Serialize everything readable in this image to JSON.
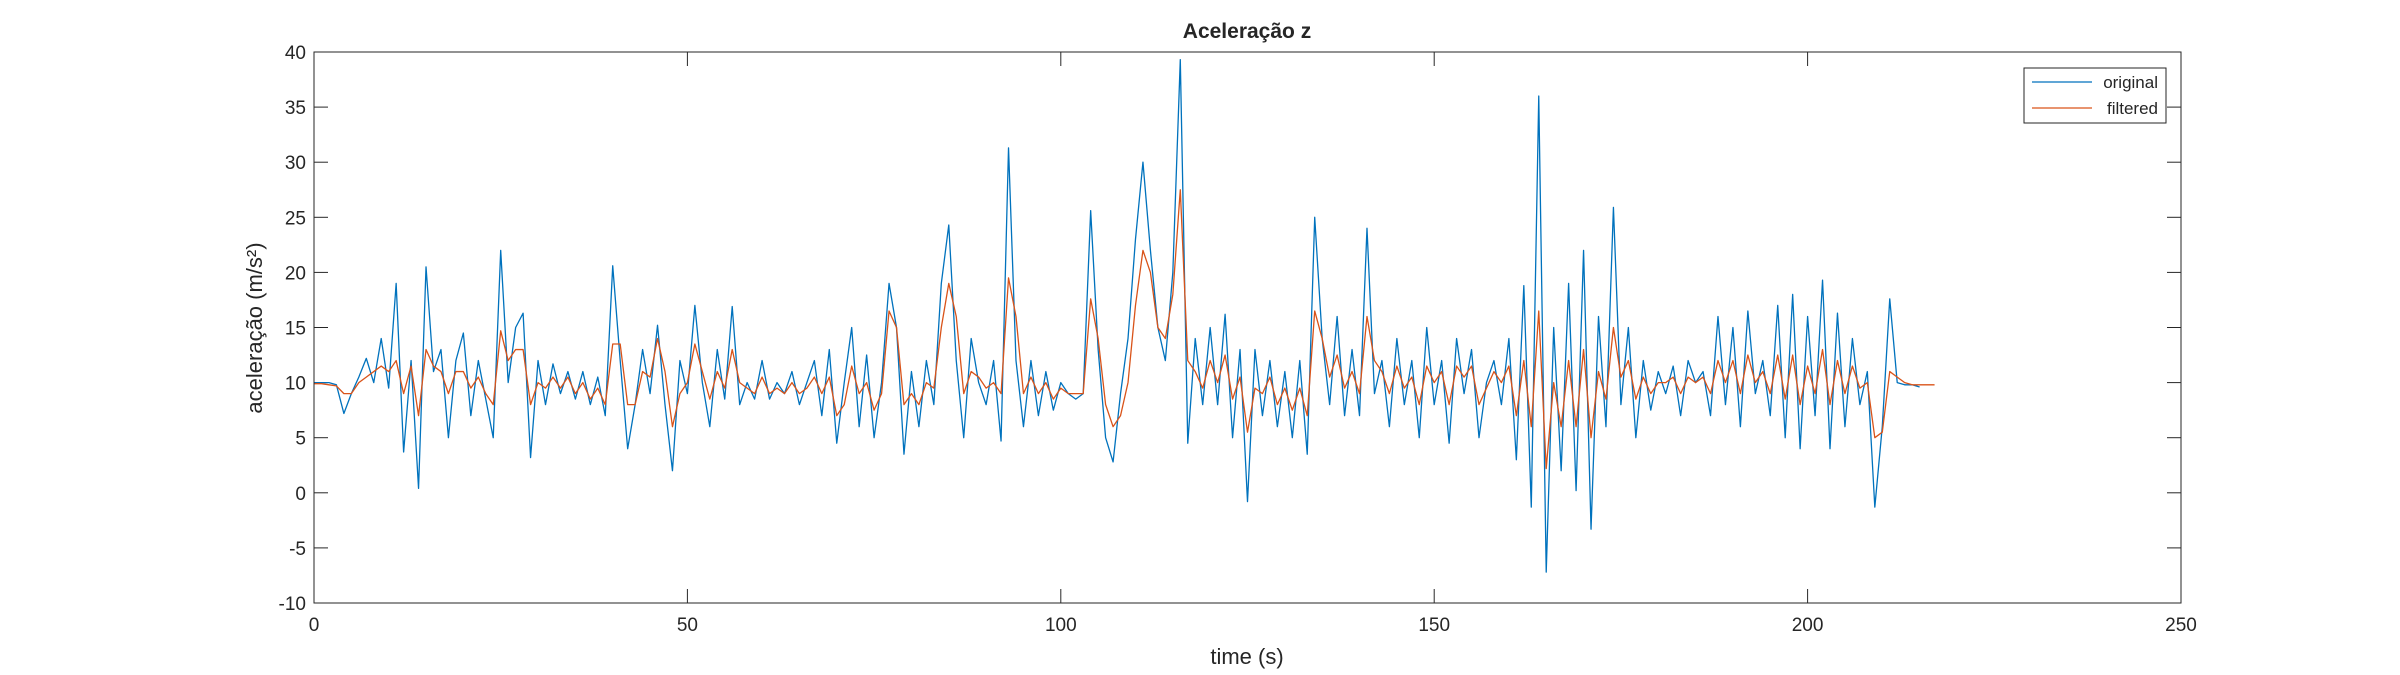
{
  "chart_data": {
    "type": "line",
    "title": "Aceleração z",
    "xlabel": "time (s)",
    "ylabel": "aceleração (m/s²)",
    "xlim": [
      0,
      250
    ],
    "xticks": [
      0,
      50,
      100,
      150,
      200,
      250
    ],
    "ylim": [
      -10,
      40
    ],
    "yticks": [
      -10,
      -5,
      0,
      5,
      10,
      15,
      20,
      25,
      30,
      35,
      40
    ],
    "grid": false,
    "legend": "northeast",
    "x": [
      0,
      1,
      2,
      3,
      4,
      5,
      6,
      7,
      8,
      9,
      10,
      11,
      12,
      13,
      14,
      15,
      16,
      17,
      18,
      19,
      20,
      21,
      22,
      23,
      24,
      25,
      26,
      27,
      28,
      29,
      30,
      31,
      32,
      33,
      34,
      35,
      36,
      37,
      38,
      39,
      40,
      41,
      42,
      43,
      44,
      45,
      46,
      47,
      48,
      49,
      50,
      51,
      52,
      53,
      54,
      55,
      56,
      57,
      58,
      59,
      60,
      61,
      62,
      63,
      64,
      65,
      66,
      67,
      68,
      69,
      70,
      71,
      72,
      73,
      74,
      75,
      76,
      77,
      78,
      79,
      80,
      81,
      82,
      83,
      84,
      85,
      86,
      87,
      88,
      89,
      90,
      91,
      92,
      93,
      94,
      95,
      96,
      97,
      98,
      99,
      100,
      101,
      102,
      103,
      104,
      105,
      106,
      107,
      108,
      109,
      110,
      111,
      112,
      113,
      114,
      115,
      116,
      117,
      118,
      119,
      120,
      121,
      122,
      123,
      124,
      125,
      126,
      127,
      128,
      129,
      130,
      131,
      132,
      133,
      134,
      135,
      136,
      137,
      138,
      139,
      140,
      141,
      142,
      143,
      144,
      145,
      146,
      147,
      148,
      149,
      150,
      151,
      152,
      153,
      154,
      155,
      156,
      157,
      158,
      159,
      160,
      161,
      162,
      163,
      164,
      165,
      166,
      167,
      168,
      169,
      170,
      171,
      172,
      173,
      174,
      175,
      176,
      177,
      178,
      179,
      180,
      181,
      182,
      183,
      184,
      185,
      186,
      187,
      188,
      189,
      190,
      191,
      192,
      193,
      194,
      195,
      196,
      197,
      198,
      199,
      200,
      201,
      202,
      203,
      204,
      205,
      206,
      207,
      208,
      209,
      210,
      211,
      212,
      213,
      214,
      215,
      216,
      217
    ],
    "series": [
      {
        "name": "original",
        "color": "#0072bd",
        "values": [
          10,
          10,
          10,
          9.8,
          7.2,
          9,
          10.5,
          12.2,
          10,
          14,
          9.5,
          19,
          3.7,
          12,
          0.4,
          20.5,
          11,
          13,
          5,
          12,
          14.5,
          7,
          12,
          8.5,
          5,
          22,
          10,
          15,
          16.3,
          3.2,
          12,
          8,
          11.7,
          9,
          11,
          8.5,
          11,
          8,
          10.5,
          7,
          20.6,
          12,
          4,
          8,
          13,
          9,
          15.2,
          8,
          2,
          12,
          9,
          17,
          10,
          6,
          13,
          8.5,
          16.9,
          8,
          10,
          8.5,
          12,
          8.5,
          10,
          9,
          11,
          8,
          10,
          12,
          7,
          13,
          4.5,
          10,
          15,
          6,
          12.5,
          5,
          10,
          19,
          15,
          3.5,
          11,
          6,
          12,
          8,
          19,
          24.3,
          12,
          5,
          14,
          10,
          8,
          12,
          4.7,
          31.3,
          12,
          6,
          12,
          7,
          11,
          7.5,
          10,
          9,
          8.5,
          9,
          25.6,
          13,
          5,
          2.8,
          9,
          14,
          23,
          30,
          22,
          15,
          12,
          20,
          39.3,
          4.5,
          14,
          8,
          15,
          8,
          16.2,
          5,
          13,
          -0.8,
          13,
          7,
          12,
          6,
          11,
          5,
          12,
          3.5,
          25,
          14,
          8,
          16,
          7,
          13,
          7,
          24,
          9,
          12,
          6,
          14,
          8,
          12,
          5,
          15,
          8,
          12,
          4.5,
          14,
          9,
          13,
          5,
          10,
          12,
          8,
          14,
          3,
          18.8,
          -1.3,
          36,
          -7.2,
          15,
          2,
          19,
          0.2,
          22,
          -3.3,
          16,
          6,
          25.9,
          8,
          15,
          5,
          12,
          7.5,
          11,
          9,
          11.5,
          7,
          12,
          10,
          11,
          7,
          16,
          8,
          15,
          6,
          16.5,
          9,
          12,
          7,
          17,
          5,
          18,
          4,
          16,
          7,
          19.3,
          4,
          16.3,
          6,
          14,
          8,
          11,
          -1.3,
          6,
          17.6,
          10,
          9.8,
          9.8,
          9.6,
          null,
          null
        ]
      },
      {
        "name": "filtered",
        "color": "#d95319",
        "values": [
          9.9,
          9.9,
          9.8,
          9.7,
          9,
          9,
          10,
          10.5,
          11,
          11.5,
          11,
          12,
          9,
          11.5,
          7,
          13,
          11.5,
          11,
          9,
          11,
          11,
          9.5,
          10.5,
          9,
          8,
          14.7,
          12,
          13,
          13,
          8,
          10,
          9.5,
          10.5,
          9.5,
          10.5,
          9,
          10,
          8.5,
          9.5,
          8,
          13.5,
          13.5,
          8,
          8,
          11,
          10.5,
          14,
          11,
          6,
          9,
          10,
          13.5,
          11,
          8.5,
          11,
          9.5,
          13,
          10,
          9.5,
          9,
          10.5,
          9,
          9.5,
          9,
          10,
          9,
          9.5,
          10.5,
          9,
          10.5,
          7,
          8,
          11.5,
          9,
          10,
          7.5,
          9,
          16.5,
          15,
          8,
          9,
          8,
          10,
          9.5,
          15,
          19,
          16,
          9,
          11,
          10.5,
          9.5,
          10,
          9,
          19.5,
          16,
          9,
          10.5,
          9,
          10,
          8.5,
          9.5,
          9,
          9,
          9,
          17.6,
          14,
          8,
          6,
          7,
          10,
          17,
          22,
          20,
          15,
          14,
          18,
          27.5,
          12,
          11,
          9.5,
          12,
          10,
          12.5,
          8.5,
          10.5,
          5.5,
          9.5,
          9,
          10.5,
          8,
          9.5,
          7.5,
          9.5,
          7,
          16.5,
          14,
          10.5,
          12.5,
          9.5,
          11,
          9,
          16,
          12,
          11,
          9,
          11.5,
          9.5,
          10.5,
          8,
          11.5,
          10,
          11,
          8,
          11.5,
          10.5,
          11.5,
          8,
          9.5,
          11,
          10,
          11.5,
          7,
          12,
          6,
          16.5,
          2.2,
          10,
          6,
          12,
          6,
          13,
          5,
          11,
          8.5,
          15,
          10.5,
          12,
          8.5,
          10.5,
          9,
          10,
          10,
          10.5,
          9,
          10.5,
          10,
          10.5,
          9,
          12,
          10,
          12,
          9,
          12.5,
          10,
          11,
          9,
          12.5,
          8.5,
          12.5,
          8,
          11.5,
          9,
          13,
          8,
          12,
          9,
          11.5,
          9.5,
          10,
          5,
          5.5,
          11,
          10.5,
          10,
          9.8,
          9.8,
          9.8,
          9.8
        ]
      }
    ]
  }
}
